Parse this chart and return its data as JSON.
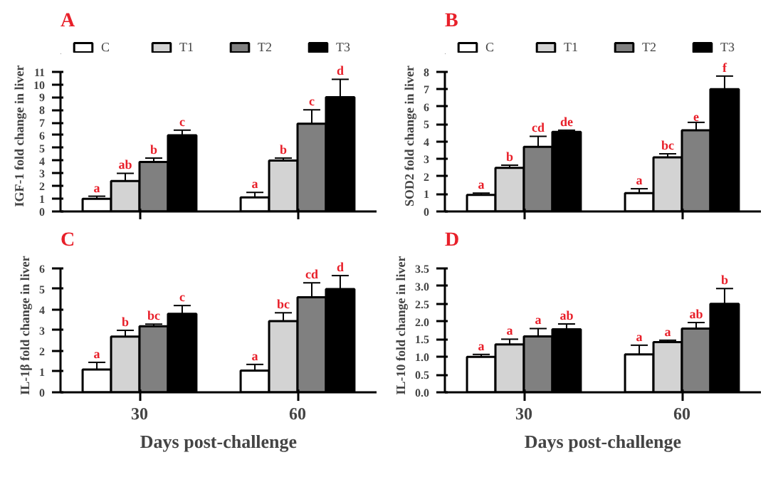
{
  "chart_data": [
    {
      "type": "bar",
      "title": "A",
      "ylabel": "IGF-1 fold change in liver",
      "categories": [
        "30",
        "60"
      ],
      "ylim": [
        0,
        11
      ],
      "yticks": [
        0,
        1,
        2,
        3,
        4,
        5,
        6,
        7,
        8,
        9,
        10,
        11
      ],
      "tick_labels": "y",
      "legend": "top",
      "grid": false,
      "series": [
        {
          "name": "C",
          "color": "#ffffff",
          "values": [
            1.0,
            1.1
          ],
          "errors": [
            [
              1.0,
              1.2
            ],
            [
              1.1,
              1.5
            ]
          ],
          "value_labels": [
            "a",
            "a"
          ]
        },
        {
          "name": "T1",
          "color": "#d3d3d3",
          "values": [
            2.4,
            4.0
          ],
          "errors": [
            [
              2.4,
              3.0
            ],
            [
              4.0,
              4.2
            ]
          ],
          "value_labels": [
            "ab",
            "b"
          ]
        },
        {
          "name": "T2",
          "color": "#808080",
          "values": [
            3.9,
            6.9
          ],
          "errors": [
            [
              3.9,
              4.2
            ],
            [
              6.9,
              8.0
            ]
          ],
          "value_labels": [
            "b",
            "c"
          ]
        },
        {
          "name": "T3",
          "color": "#000000",
          "values": [
            6.0,
            9.0
          ],
          "errors": [
            [
              6.0,
              6.4
            ],
            [
              9.0,
              10.4
            ]
          ],
          "value_labels": [
            "c",
            "d"
          ]
        }
      ]
    },
    {
      "type": "bar",
      "title": "B",
      "ylabel": "SOD2 fold change in liver",
      "categories": [
        "30",
        "60"
      ],
      "ylim": [
        0,
        8
      ],
      "yticks": [
        0,
        1,
        2,
        3,
        4,
        5,
        6,
        7,
        8
      ],
      "tick_labels": "y",
      "legend": "top",
      "grid": false,
      "series": [
        {
          "name": "C",
          "color": "#ffffff",
          "values": [
            0.95,
            1.05
          ],
          "errors": [
            [
              0.95,
              1.05
            ],
            [
              1.05,
              1.3
            ]
          ],
          "value_labels": [
            "a",
            "a"
          ]
        },
        {
          "name": "T1",
          "color": "#d3d3d3",
          "values": [
            2.5,
            3.1
          ],
          "errors": [
            [
              2.5,
              2.65
            ],
            [
              3.1,
              3.3
            ]
          ],
          "value_labels": [
            "b",
            "bc"
          ]
        },
        {
          "name": "T2",
          "color": "#808080",
          "values": [
            3.7,
            4.65
          ],
          "errors": [
            [
              3.7,
              4.3
            ],
            [
              4.65,
              5.1
            ]
          ],
          "value_labels": [
            "cd",
            "e"
          ]
        },
        {
          "name": "T3",
          "color": "#000000",
          "values": [
            4.55,
            7.0
          ],
          "errors": [
            [
              4.55,
              4.65
            ],
            [
              7.0,
              7.75
            ]
          ],
          "value_labels": [
            "de",
            "f"
          ]
        }
      ]
    },
    {
      "type": "bar",
      "title": "C",
      "ylabel": "IL-1β fold change in liver",
      "xlabel": "Days post-challenge",
      "categories": [
        "30",
        "60"
      ],
      "ylim": [
        0,
        6
      ],
      "yticks": [
        0,
        1,
        2,
        3,
        4,
        5,
        6
      ],
      "legend": false,
      "grid": false,
      "series": [
        {
          "color": "#ffffff",
          "values": [
            1.1,
            1.05
          ],
          "errors": [
            [
              1.1,
              1.45
            ],
            [
              1.05,
              1.35
            ]
          ],
          "value_labels": [
            "a",
            "a"
          ]
        },
        {
          "color": "#d3d3d3",
          "values": [
            2.7,
            3.45
          ],
          "errors": [
            [
              2.7,
              3.0
            ],
            [
              3.45,
              3.85
            ]
          ],
          "value_labels": [
            "b",
            "bc"
          ]
        },
        {
          "color": "#808080",
          "values": [
            3.2,
            4.6
          ],
          "errors": [
            [
              3.2,
              3.3
            ],
            [
              4.6,
              5.3
            ]
          ],
          "value_labels": [
            "bc",
            "cd"
          ]
        },
        {
          "color": "#000000",
          "values": [
            3.8,
            5.0
          ],
          "errors": [
            [
              3.8,
              4.2
            ],
            [
              5.0,
              5.65
            ]
          ],
          "value_labels": [
            "c",
            "d"
          ]
        }
      ]
    },
    {
      "type": "bar",
      "title": "D",
      "ylabel": "IL-10 fold change in liver",
      "xlabel": "Days post-challenge",
      "categories": [
        "30",
        "60"
      ],
      "ylim": [
        0,
        3.5
      ],
      "yticks": [
        {
          "value": 0,
          "label": "0.0"
        },
        {
          "value": 0.5,
          "label": "0.5"
        },
        {
          "value": 1,
          "label": "1.0"
        },
        {
          "value": 1.5,
          "label": "1.5"
        },
        {
          "value": 2,
          "label": "2.0"
        },
        {
          "value": 2.5,
          "label": "2.5"
        },
        {
          "value": 3,
          "label": "3.0"
        },
        {
          "value": 3.5,
          "label": "3.5"
        }
      ],
      "legend": false,
      "grid": false,
      "series": [
        {
          "color": "#ffffff",
          "values": [
            1.0,
            1.07
          ],
          "errors": [
            [
              1.0,
              1.07
            ],
            [
              1.07,
              1.33
            ]
          ],
          "value_labels": [
            "a",
            "a"
          ]
        },
        {
          "color": "#d3d3d3",
          "values": [
            1.35,
            1.42
          ],
          "errors": [
            [
              1.35,
              1.5
            ],
            [
              1.42,
              1.47
            ]
          ],
          "value_labels": [
            "a",
            "a"
          ]
        },
        {
          "color": "#808080",
          "values": [
            1.58,
            1.8
          ],
          "errors": [
            [
              1.58,
              1.8
            ],
            [
              1.8,
              1.97
            ]
          ],
          "value_labels": [
            "a",
            "ab"
          ]
        },
        {
          "color": "#000000",
          "values": [
            1.78,
            2.5
          ],
          "errors": [
            [
              1.78,
              1.93
            ],
            [
              2.5,
              2.93
            ]
          ],
          "value_labels": [
            "ab",
            "b"
          ]
        }
      ]
    }
  ]
}
